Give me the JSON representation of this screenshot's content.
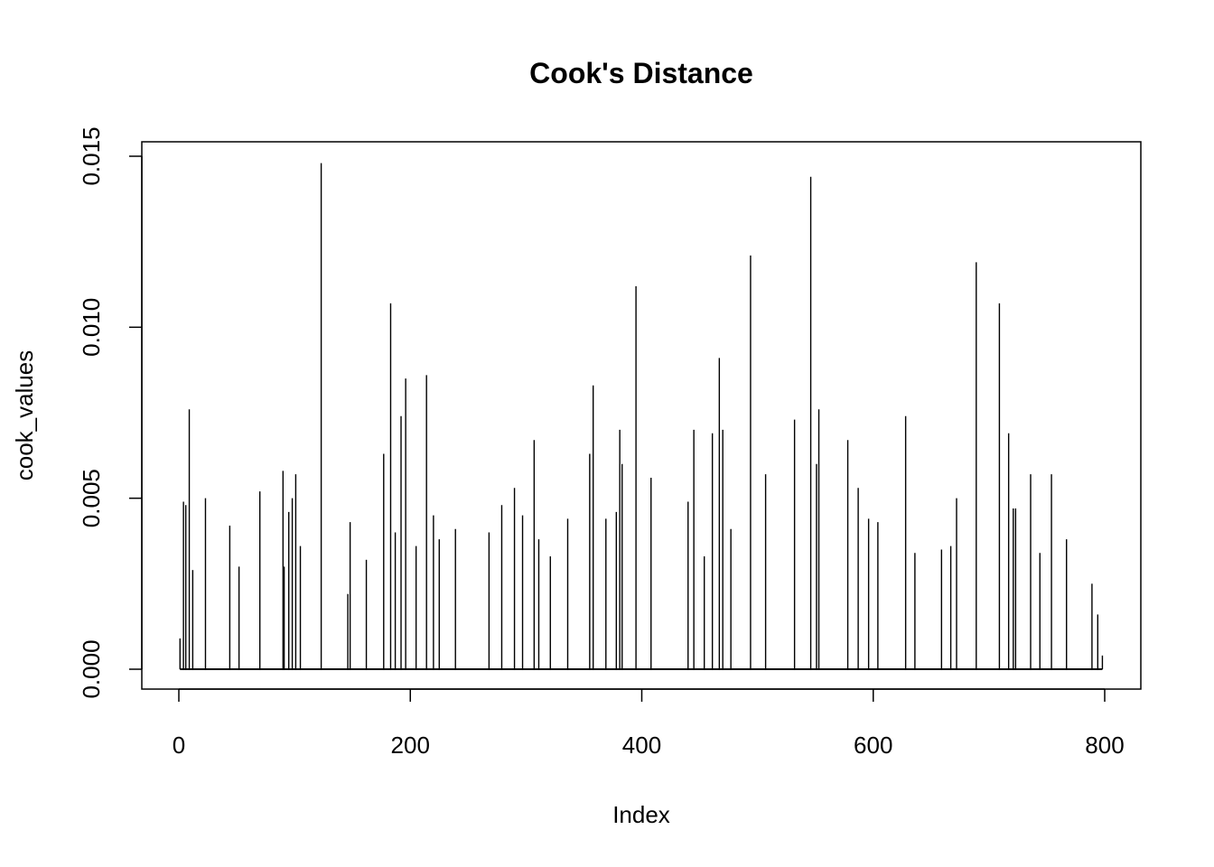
{
  "chart_data": {
    "type": "line",
    "style": "vertical-lines",
    "title": "Cook's Distance",
    "xlabel": "Index",
    "ylabel": "cook_values",
    "xlim": [
      0,
      800
    ],
    "ylim": [
      0,
      0.015
    ],
    "xticks": [
      "0",
      "200",
      "400",
      "600",
      "800"
    ],
    "yticks": [
      "0.000",
      "0.005",
      "0.010",
      "0.015"
    ],
    "grid": false,
    "color": "#000000",
    "n_points": 798,
    "x": [
      1,
      4,
      6,
      9,
      12,
      23,
      44,
      52,
      70,
      90,
      91,
      95,
      98,
      101,
      105,
      123,
      146,
      148,
      162,
      177,
      183,
      187,
      192,
      196,
      205,
      214,
      220,
      225,
      239,
      268,
      279,
      290,
      297,
      307,
      311,
      321,
      336,
      355,
      358,
      369,
      378,
      381,
      383,
      395,
      408,
      440,
      445,
      454,
      461,
      467,
      470,
      477,
      494,
      507,
      532,
      546,
      551,
      553,
      578,
      587,
      596,
      604,
      628,
      636,
      659,
      667,
      672,
      689,
      709,
      717,
      721,
      723,
      736,
      744,
      754,
      767,
      789,
      794,
      798
    ],
    "y": [
      0.0009,
      0.0049,
      0.0048,
      0.0076,
      0.0029,
      0.005,
      0.0042,
      0.003,
      0.0052,
      0.0058,
      0.003,
      0.0046,
      0.005,
      0.0057,
      0.0036,
      0.0148,
      0.0022,
      0.0043,
      0.0032,
      0.0063,
      0.0107,
      0.004,
      0.0074,
      0.0085,
      0.0036,
      0.0086,
      0.0045,
      0.0038,
      0.0041,
      0.004,
      0.0048,
      0.0053,
      0.0045,
      0.0067,
      0.0038,
      0.0033,
      0.0044,
      0.0063,
      0.0083,
      0.0044,
      0.0046,
      0.007,
      0.006,
      0.0112,
      0.0056,
      0.0049,
      0.007,
      0.0033,
      0.0069,
      0.0091,
      0.007,
      0.0041,
      0.0121,
      0.0057,
      0.0073,
      0.0144,
      0.006,
      0.0076,
      0.0067,
      0.0053,
      0.0044,
      0.0043,
      0.0074,
      0.0034,
      0.0035,
      0.0036,
      0.005,
      0.0119,
      0.0107,
      0.0069,
      0.0047,
      0.0047,
      0.0057,
      0.0034,
      0.0057,
      0.0038,
      0.0025,
      0.0016,
      0.0004
    ]
  }
}
